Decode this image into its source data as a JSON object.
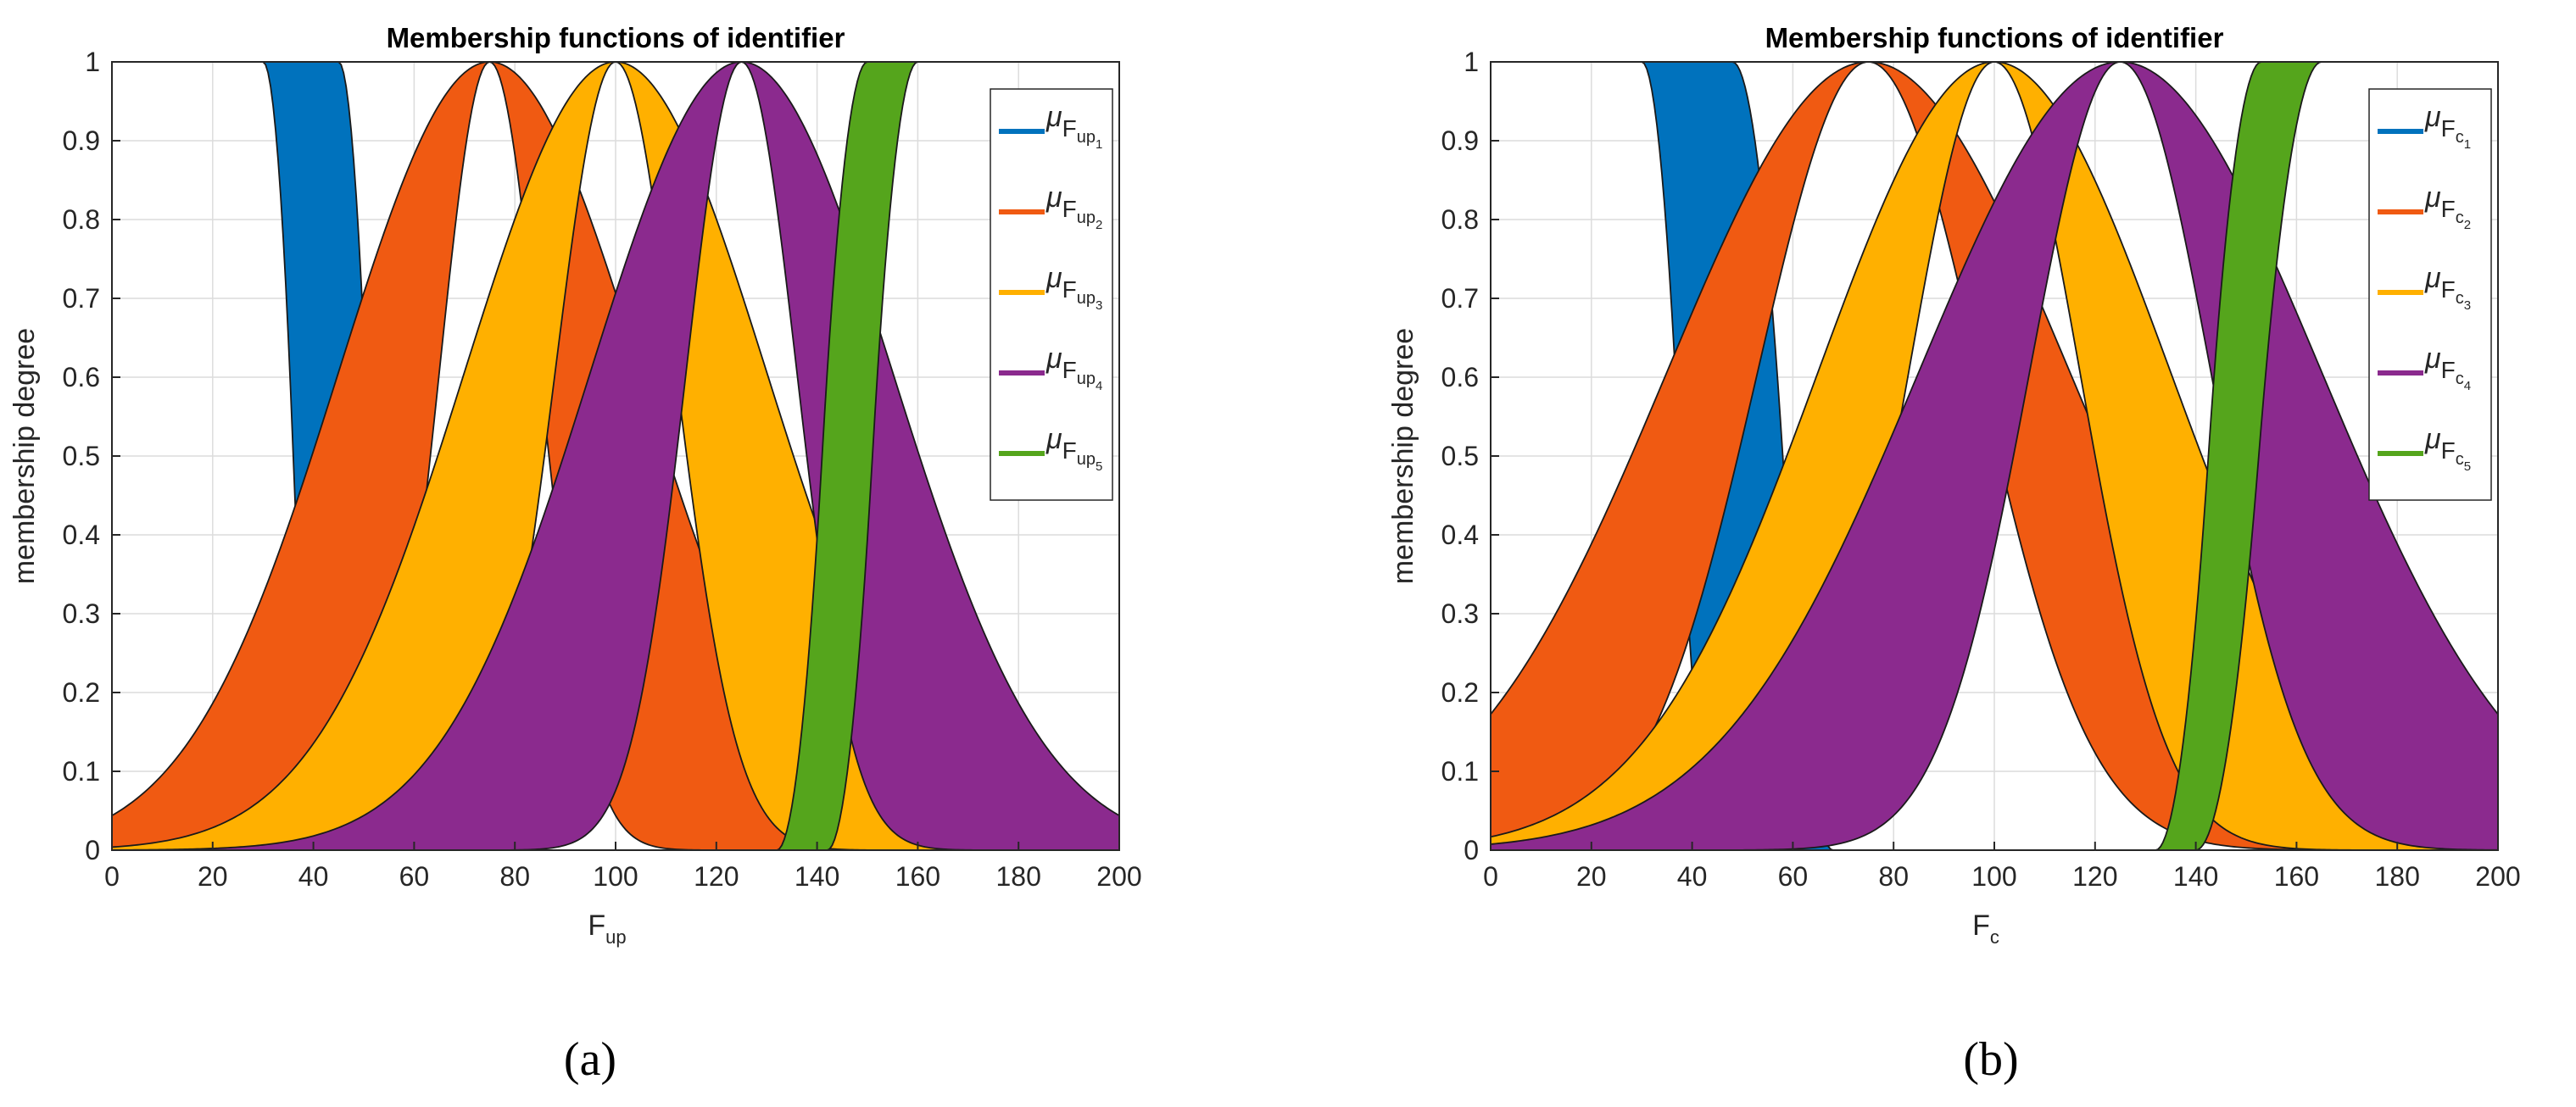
{
  "colors": {
    "blue": "#0072BD",
    "orange": "#F05A12",
    "yellow": "#FFB000",
    "purple": "#8B2A8E",
    "green": "#55A51C",
    "grid": "#dcdcdc",
    "axis": "#262626"
  },
  "chart_data": [
    {
      "type": "area",
      "panel_label": "(a)",
      "title": "Membership functions of identifier",
      "xlabel": {
        "base": "F",
        "sub": "up"
      },
      "ylabel": "membership degree",
      "xlim": [
        0,
        200
      ],
      "ylim": [
        0,
        1
      ],
      "grid": true,
      "legend_position": "top-right",
      "xticks": [
        "0",
        "20",
        "40",
        "60",
        "80",
        "100",
        "120",
        "140",
        "160",
        "180",
        "200"
      ],
      "yticks": [
        "0",
        "0.1",
        "0.2",
        "0.3",
        "0.4",
        "0.5",
        "0.6",
        "0.7",
        "0.8",
        "0.9",
        "1"
      ],
      "series": [
        {
          "name": "μF_up1",
          "legend": {
            "mu": "μ",
            "base": "F",
            "sub": "up",
            "subsub": "1"
          },
          "color_key": "blue",
          "upper": {
            "shape": "zmf",
            "a": 45,
            "b": 57
          },
          "lower": {
            "shape": "zmf",
            "a": 30,
            "b": 42
          }
        },
        {
          "name": "μF_up2",
          "legend": {
            "mu": "μ",
            "base": "F",
            "sub": "up",
            "subsub": "2"
          },
          "color_key": "orange",
          "upper": {
            "shape": "gauss",
            "center": 75,
            "sigma": 30
          },
          "lower": {
            "shape": "gauss",
            "center": 75,
            "sigma": 10
          }
        },
        {
          "name": "μF_up3",
          "legend": {
            "mu": "μ",
            "base": "F",
            "sub": "up",
            "subsub": "3"
          },
          "color_key": "yellow",
          "upper": {
            "shape": "gauss",
            "center": 100,
            "sigma": 30
          },
          "lower": {
            "shape": "gauss",
            "center": 100,
            "sigma": 12
          }
        },
        {
          "name": "μF_up4",
          "legend": {
            "mu": "μ",
            "base": "F",
            "sub": "up",
            "subsub": "4"
          },
          "color_key": "purple",
          "upper": {
            "shape": "gauss",
            "center": 125,
            "sigma": 30
          },
          "lower": {
            "shape": "gauss",
            "center": 125,
            "sigma": 11
          }
        },
        {
          "name": "μF_up5",
          "legend": {
            "mu": "μ",
            "base": "F",
            "sub": "up",
            "subsub": "5"
          },
          "color_key": "green",
          "upper": {
            "shape": "smf",
            "a": 132,
            "b": 150
          },
          "lower": {
            "shape": "smf",
            "a": 142,
            "b": 160
          }
        }
      ]
    },
    {
      "type": "area",
      "panel_label": "(b)",
      "title": "Membership functions of identifier",
      "xlabel": {
        "base": "F",
        "sub": "c"
      },
      "ylabel": "membership degree",
      "xlim": [
        0,
        200
      ],
      "ylim": [
        0,
        1
      ],
      "grid": true,
      "legend_position": "top-right",
      "xticks": [
        "0",
        "20",
        "40",
        "60",
        "80",
        "100",
        "120",
        "140",
        "160",
        "180",
        "200"
      ],
      "yticks": [
        "0",
        "0.1",
        "0.2",
        "0.3",
        "0.4",
        "0.5",
        "0.6",
        "0.7",
        "0.8",
        "0.9",
        "1"
      ],
      "series": [
        {
          "name": "μF_c1",
          "legend": {
            "mu": "μ",
            "base": "F",
            "sub": "c",
            "subsub": "1"
          },
          "color_key": "blue",
          "upper": {
            "shape": "zmf",
            "a": 48,
            "b": 68
          },
          "lower": {
            "shape": "zmf",
            "a": 30,
            "b": 45
          }
        },
        {
          "name": "μF_c2",
          "legend": {
            "mu": "μ",
            "base": "F",
            "sub": "c",
            "subsub": "2"
          },
          "color_key": "orange",
          "upper": {
            "shape": "gauss",
            "center": 75,
            "sigma": 40
          },
          "lower": {
            "shape": "gauss",
            "center": 75,
            "sigma": 22
          }
        },
        {
          "name": "μF_c3",
          "legend": {
            "mu": "μ",
            "base": "F",
            "sub": "c",
            "subsub": "3"
          },
          "color_key": "yellow",
          "upper": {
            "shape": "gauss",
            "center": 100,
            "sigma": 35
          },
          "lower": {
            "shape": "gauss",
            "center": 100,
            "sigma": 17
          }
        },
        {
          "name": "μF_c4",
          "legend": {
            "mu": "μ",
            "base": "F",
            "sub": "c",
            "subsub": "4"
          },
          "color_key": "purple",
          "upper": {
            "shape": "gauss",
            "center": 125,
            "sigma": 40
          },
          "lower": {
            "shape": "gauss",
            "center": 125,
            "sigma": 18
          }
        },
        {
          "name": "μF_c5",
          "legend": {
            "mu": "μ",
            "base": "F",
            "sub": "c",
            "subsub": "5"
          },
          "color_key": "green",
          "upper": {
            "shape": "smf",
            "a": 132,
            "b": 153
          },
          "lower": {
            "shape": "smf",
            "a": 140,
            "b": 165
          }
        }
      ]
    }
  ]
}
